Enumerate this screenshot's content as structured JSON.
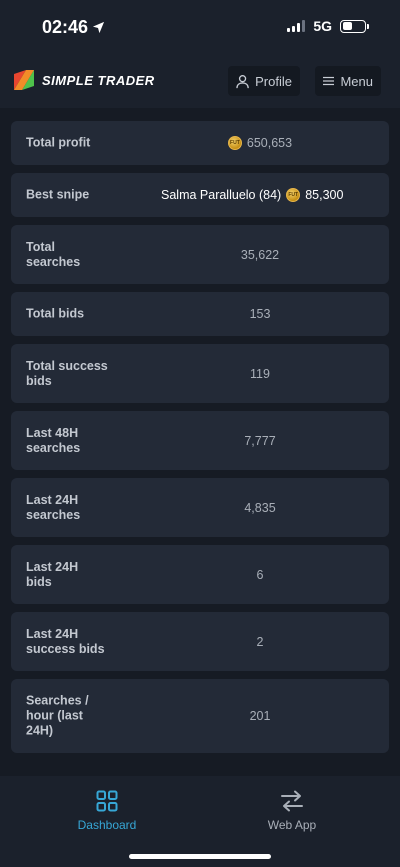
{
  "status_bar": {
    "time": "02:46",
    "network": "5G"
  },
  "header": {
    "brand_name": "SIMPLE TRADER",
    "profile_label": "Profile",
    "menu_label": "Menu"
  },
  "stats": [
    {
      "label": "Total profit",
      "value": "650,653",
      "coin": true
    },
    {
      "label": "Best snipe",
      "player": "Salma Paralluelo (84)",
      "value": "85,300",
      "coin": true
    },
    {
      "label": "Total searches",
      "value": "35,622"
    },
    {
      "label": "Total bids",
      "value": "153"
    },
    {
      "label": "Total success bids",
      "value": "119"
    },
    {
      "label": "Last 48H searches",
      "value": "7,777"
    },
    {
      "label": "Last 24H searches",
      "value": "4,835"
    },
    {
      "label": "Last 24H bids",
      "value": "6"
    },
    {
      "label": "Last 24H success bids",
      "value": "2"
    },
    {
      "label": "Searches / hour (last 24H)",
      "value": "201"
    }
  ],
  "coin_text": "FUT",
  "bottom_nav": {
    "items": [
      {
        "label": "Dashboard",
        "icon": "dashboard-grid-icon",
        "active": true
      },
      {
        "label": "Web App",
        "icon": "swap-arrows-icon",
        "active": false
      }
    ]
  },
  "colors": {
    "accent": "#37a7d6",
    "background": "#161b24",
    "card": "#232a37",
    "coin": "#e6b54a"
  }
}
